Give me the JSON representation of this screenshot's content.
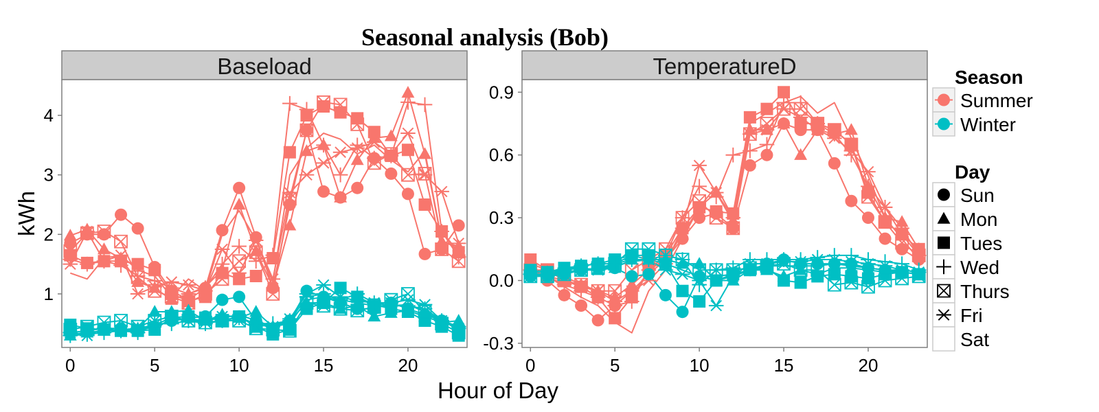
{
  "chart_data": {
    "type": "line",
    "title": "Seasonal analysis (Bob)",
    "xlabel": "Hour of Day",
    "ylabel": "kWh",
    "xlim": [
      -0.5,
      23.5
    ],
    "x": [
      0,
      1,
      2,
      3,
      4,
      5,
      6,
      7,
      8,
      9,
      10,
      11,
      12,
      13,
      14,
      15,
      16,
      17,
      18,
      19,
      20,
      21,
      22,
      23
    ],
    "season_colors": {
      "Summer": "#F8766D",
      "Winter": "#00BFC4"
    },
    "legend": {
      "season_title": "Season",
      "seasons": [
        "Summer",
        "Winter"
      ],
      "day_title": "Day",
      "days": [
        {
          "label": "Sun",
          "shape": "circle"
        },
        {
          "label": "Mon",
          "shape": "triangle"
        },
        {
          "label": "Tues",
          "shape": "square"
        },
        {
          "label": "Wed",
          "shape": "plus"
        },
        {
          "label": "Thurs",
          "shape": "square-cross"
        },
        {
          "label": "Fri",
          "shape": "asterisk"
        },
        {
          "label": "Sat",
          "shape": "none"
        }
      ]
    },
    "panels": [
      {
        "strip": "Baseload",
        "ylim": [
          0.1,
          4.6
        ],
        "yticks": [
          1,
          2,
          3,
          4
        ],
        "ytick_labels": [
          "1",
          "2",
          "3",
          "4"
        ],
        "xticks": [
          0,
          5,
          10,
          15,
          20
        ],
        "series": [
          {
            "season": "Summer",
            "day": "Sun",
            "values": [
              1.85,
              2.0,
              2.0,
              2.33,
              2.1,
              1.45,
              1.05,
              0.9,
              1.1,
              2.07,
              2.78,
              1.95,
              1.1,
              2.5,
              3.75,
              2.72,
              2.62,
              2.78,
              3.28,
              3.02,
              2.68,
              1.67,
              1.75,
              2.15
            ]
          },
          {
            "season": "Summer",
            "day": "Mon",
            "values": [
              1.98,
              2.08,
              1.75,
              1.6,
              1.2,
              1.1,
              0.9,
              1.0,
              1.12,
              1.4,
              2.5,
              1.72,
              1.12,
              2.15,
              3.4,
              3.5,
              2.62,
              3.25,
              3.62,
              3.65,
              4.38,
              3.35,
              1.88,
              1.8
            ]
          },
          {
            "season": "Summer",
            "day": "Tues",
            "values": [
              1.65,
              1.52,
              1.55,
              1.55,
              1.5,
              1.4,
              1.0,
              0.88,
              0.95,
              1.35,
              1.25,
              1.3,
              1.6,
              3.38,
              4.0,
              4.15,
              4.05,
              3.95,
              3.72,
              3.32,
              3.42,
              2.5,
              2.05,
              1.7
            ]
          },
          {
            "season": "Summer",
            "day": "Wed",
            "values": [
              1.58,
              1.5,
              1.55,
              1.48,
              1.3,
              1.22,
              1.1,
              1.0,
              1.1,
              1.5,
              1.8,
              1.55,
              1.65,
              4.2,
              4.1,
              3.5,
              3.0,
              3.5,
              3.28,
              3.32,
              4.22,
              4.18,
              2.05,
              1.62
            ]
          },
          {
            "season": "Summer",
            "day": "Thurs",
            "values": [
              1.72,
              2.02,
              2.05,
              1.88,
              1.28,
              1.05,
              0.95,
              0.85,
              1.0,
              1.25,
              1.55,
              1.7,
              1.0,
              2.6,
              3.75,
              4.22,
              4.18,
              3.85,
              3.2,
              3.35,
              3.0,
              3.02,
              1.75,
              1.55
            ]
          },
          {
            "season": "Summer",
            "day": "Fri",
            "values": [
              1.5,
              2.05,
              1.55,
              1.65,
              1.0,
              1.12,
              1.2,
              1.15,
              1.05,
              1.75,
              1.35,
              1.9,
              1.25,
              2.7,
              3.0,
              3.2,
              3.38,
              3.45,
              3.55,
              3.35,
              3.7,
              3.0,
              2.72,
              1.85
            ]
          },
          {
            "season": "Summer",
            "day": "Sat",
            "values": [
              1.35,
              1.25,
              1.6,
              1.65,
              1.4,
              1.3,
              0.95,
              1.25,
              1.05,
              2.0,
              2.4,
              1.9,
              1.2,
              3.0,
              3.45,
              3.7,
              3.6,
              3.35,
              3.5,
              3.25,
              3.05,
              3.4,
              1.9,
              1.75
            ]
          },
          {
            "season": "Winter",
            "day": "Sun",
            "values": [
              0.35,
              0.38,
              0.42,
              0.42,
              0.38,
              0.45,
              0.55,
              0.6,
              0.62,
              0.9,
              0.95,
              0.55,
              0.42,
              0.55,
              1.05,
              0.95,
              0.85,
              0.75,
              0.75,
              0.85,
              0.75,
              0.65,
              0.55,
              0.45
            ]
          },
          {
            "season": "Winter",
            "day": "Mon",
            "values": [
              0.3,
              0.35,
              0.38,
              0.4,
              0.42,
              0.7,
              0.7,
              0.72,
              0.55,
              0.65,
              0.6,
              0.7,
              0.45,
              0.55,
              0.85,
              0.85,
              0.75,
              0.8,
              0.62,
              0.68,
              0.72,
              0.62,
              0.52,
              0.55
            ]
          },
          {
            "season": "Winter",
            "day": "Tues",
            "values": [
              0.48,
              0.42,
              0.4,
              0.38,
              0.38,
              0.4,
              0.6,
              0.62,
              0.6,
              0.55,
              0.62,
              0.45,
              0.32,
              0.4,
              0.75,
              0.85,
              1.1,
              0.95,
              0.82,
              0.75,
              0.7,
              0.55,
              0.45,
              0.3
            ]
          },
          {
            "season": "Winter",
            "day": "Wed",
            "values": [
              0.3,
              0.32,
              0.35,
              0.38,
              0.35,
              0.5,
              0.5,
              0.55,
              0.5,
              0.55,
              0.6,
              0.5,
              0.5,
              0.55,
              0.95,
              1.0,
              0.9,
              1.0,
              0.85,
              0.8,
              0.8,
              0.75,
              0.55,
              0.45
            ]
          },
          {
            "season": "Winter",
            "day": "Thurs",
            "values": [
              0.4,
              0.45,
              0.52,
              0.55,
              0.45,
              0.55,
              0.62,
              0.55,
              0.52,
              0.55,
              0.55,
              0.42,
              0.4,
              0.38,
              0.85,
              0.8,
              0.75,
              0.72,
              0.78,
              0.9,
              1.0,
              0.7,
              0.5,
              0.35
            ]
          },
          {
            "season": "Winter",
            "day": "Fri",
            "values": [
              0.35,
              0.3,
              0.42,
              0.38,
              0.42,
              0.48,
              0.6,
              0.55,
              0.55,
              0.62,
              0.62,
              0.48,
              0.45,
              0.58,
              1.0,
              1.15,
              0.95,
              0.88,
              0.85,
              0.85,
              0.9,
              0.82,
              0.55,
              0.42
            ]
          },
          {
            "season": "Winter",
            "day": "Sat",
            "values": [
              0.32,
              0.35,
              0.38,
              0.4,
              0.4,
              0.45,
              0.55,
              0.58,
              0.55,
              0.6,
              0.65,
              0.55,
              0.45,
              0.5,
              0.9,
              0.95,
              0.9,
              0.85,
              0.8,
              0.8,
              0.82,
              0.7,
              0.55,
              0.4
            ]
          }
        ]
      },
      {
        "strip": "TemperatureD",
        "ylim": [
          -0.32,
          0.96
        ],
        "yticks": [
          -0.3,
          0.0,
          0.3,
          0.6,
          0.9
        ],
        "ytick_labels": [
          "-0.3",
          "0.0",
          "0.3",
          "0.6",
          "0.9"
        ],
        "xticks": [
          0,
          5,
          10,
          15,
          20
        ],
        "series": [
          {
            "season": "Summer",
            "day": "Sun",
            "values": [
              0.05,
              0.0,
              -0.07,
              -0.12,
              -0.19,
              -0.12,
              -0.05,
              0.03,
              0.1,
              0.2,
              0.3,
              0.32,
              0.25,
              0.55,
              0.6,
              0.75,
              0.72,
              0.72,
              0.56,
              0.38,
              0.3,
              0.2,
              0.15,
              0.1
            ]
          },
          {
            "season": "Summer",
            "day": "Mon",
            "values": [
              0.08,
              0.05,
              0.02,
              -0.02,
              -0.05,
              -0.08,
              -0.02,
              0.05,
              0.1,
              0.22,
              0.35,
              0.42,
              0.28,
              0.72,
              0.72,
              0.75,
              0.6,
              0.72,
              0.7,
              0.72,
              0.45,
              0.3,
              0.28,
              0.15
            ]
          },
          {
            "season": "Summer",
            "day": "Tues",
            "values": [
              0.1,
              0.05,
              0.0,
              -0.03,
              -0.08,
              -0.18,
              -0.08,
              0.05,
              0.12,
              0.25,
              0.35,
              0.33,
              0.32,
              0.78,
              0.82,
              0.9,
              0.75,
              0.75,
              0.72,
              0.65,
              0.42,
              0.28,
              0.22,
              0.15
            ]
          },
          {
            "season": "Summer",
            "day": "Wed",
            "values": [
              0.05,
              0.02,
              -0.02,
              -0.05,
              -0.08,
              -0.12,
              -0.1,
              0.05,
              0.12,
              0.3,
              0.45,
              0.4,
              0.6,
              0.62,
              0.65,
              0.85,
              0.85,
              0.75,
              0.7,
              0.6,
              0.45,
              0.35,
              0.25,
              0.12
            ]
          },
          {
            "season": "Summer",
            "day": "Thurs",
            "values": [
              0.05,
              0.05,
              0.0,
              -0.02,
              -0.05,
              -0.05,
              0.05,
              0.1,
              0.15,
              0.3,
              0.38,
              0.3,
              0.25,
              0.7,
              0.75,
              0.82,
              0.82,
              0.75,
              0.72,
              0.65,
              0.4,
              0.28,
              0.18,
              0.12
            ]
          },
          {
            "season": "Summer",
            "day": "Fri",
            "values": [
              0.05,
              0.02,
              0.0,
              -0.03,
              -0.05,
              -0.1,
              -0.05,
              0.0,
              0.08,
              0.25,
              0.55,
              0.42,
              0.3,
              0.7,
              0.72,
              0.82,
              0.78,
              0.72,
              0.68,
              0.62,
              0.52,
              0.35,
              0.22,
              0.12
            ]
          },
          {
            "season": "Summer",
            "day": "Sat",
            "values": [
              0.05,
              0.02,
              -0.03,
              -0.08,
              -0.12,
              -0.2,
              -0.25,
              -0.05,
              0.05,
              0.2,
              0.35,
              0.45,
              0.3,
              0.75,
              0.8,
              0.85,
              0.88,
              0.8,
              0.85,
              0.68,
              0.5,
              0.3,
              0.2,
              0.1
            ]
          },
          {
            "season": "Winter",
            "day": "Sun",
            "values": [
              0.02,
              0.02,
              0.03,
              0.05,
              0.06,
              0.06,
              0.02,
              0.03,
              -0.07,
              -0.15,
              0.02,
              0.0,
              0.02,
              0.05,
              0.08,
              0.1,
              0.08,
              0.08,
              0.08,
              0.08,
              0.06,
              0.05,
              0.04,
              0.03
            ]
          },
          {
            "season": "Winter",
            "day": "Mon",
            "values": [
              0.04,
              0.04,
              0.05,
              0.06,
              0.05,
              0.06,
              0.1,
              0.1,
              0.1,
              0.08,
              0.08,
              0.0,
              0.0,
              0.05,
              0.05,
              0.02,
              0.05,
              0.03,
              0.06,
              0.06,
              0.05,
              0.04,
              0.04,
              0.03
            ]
          },
          {
            "season": "Winter",
            "day": "Tues",
            "values": [
              0.05,
              0.04,
              0.06,
              0.07,
              0.08,
              0.1,
              0.12,
              0.12,
              0.08,
              -0.05,
              -0.1,
              0.0,
              0.03,
              0.05,
              0.06,
              0.0,
              -0.01,
              0.02,
              0.03,
              0.02,
              0.01,
              0.03,
              0.04,
              0.03
            ]
          },
          {
            "season": "Winter",
            "day": "Wed",
            "values": [
              0.03,
              0.03,
              0.05,
              0.07,
              0.08,
              0.08,
              0.1,
              0.1,
              0.12,
              0.1,
              -0.02,
              0.05,
              0.06,
              0.1,
              0.1,
              0.1,
              0.1,
              0.11,
              0.12,
              0.12,
              0.1,
              0.09,
              0.08,
              0.05
            ]
          },
          {
            "season": "Winter",
            "day": "Thurs",
            "values": [
              0.02,
              0.02,
              0.03,
              0.05,
              0.06,
              0.08,
              0.15,
              0.15,
              0.12,
              0.1,
              0.05,
              0.05,
              0.05,
              0.06,
              0.07,
              0.08,
              0.05,
              0.05,
              -0.02,
              -0.01,
              -0.03,
              0.0,
              0.01,
              0.02
            ]
          },
          {
            "season": "Winter",
            "day": "Fri",
            "values": [
              0.03,
              0.02,
              0.04,
              0.05,
              0.05,
              0.08,
              0.12,
              0.1,
              0.05,
              0.03,
              0.0,
              -0.12,
              0.02,
              0.08,
              0.08,
              0.09,
              0.09,
              0.1,
              0.1,
              0.09,
              0.08,
              0.07,
              0.05,
              0.04
            ]
          },
          {
            "season": "Winter",
            "day": "Sat",
            "values": [
              0.03,
              0.03,
              0.04,
              0.05,
              0.06,
              0.07,
              0.09,
              0.1,
              0.08,
              0.05,
              0.02,
              0.02,
              0.03,
              0.05,
              0.07,
              0.07,
              0.07,
              0.07,
              0.08,
              0.07,
              0.06,
              0.05,
              0.05,
              0.04
            ]
          }
        ]
      }
    ]
  }
}
